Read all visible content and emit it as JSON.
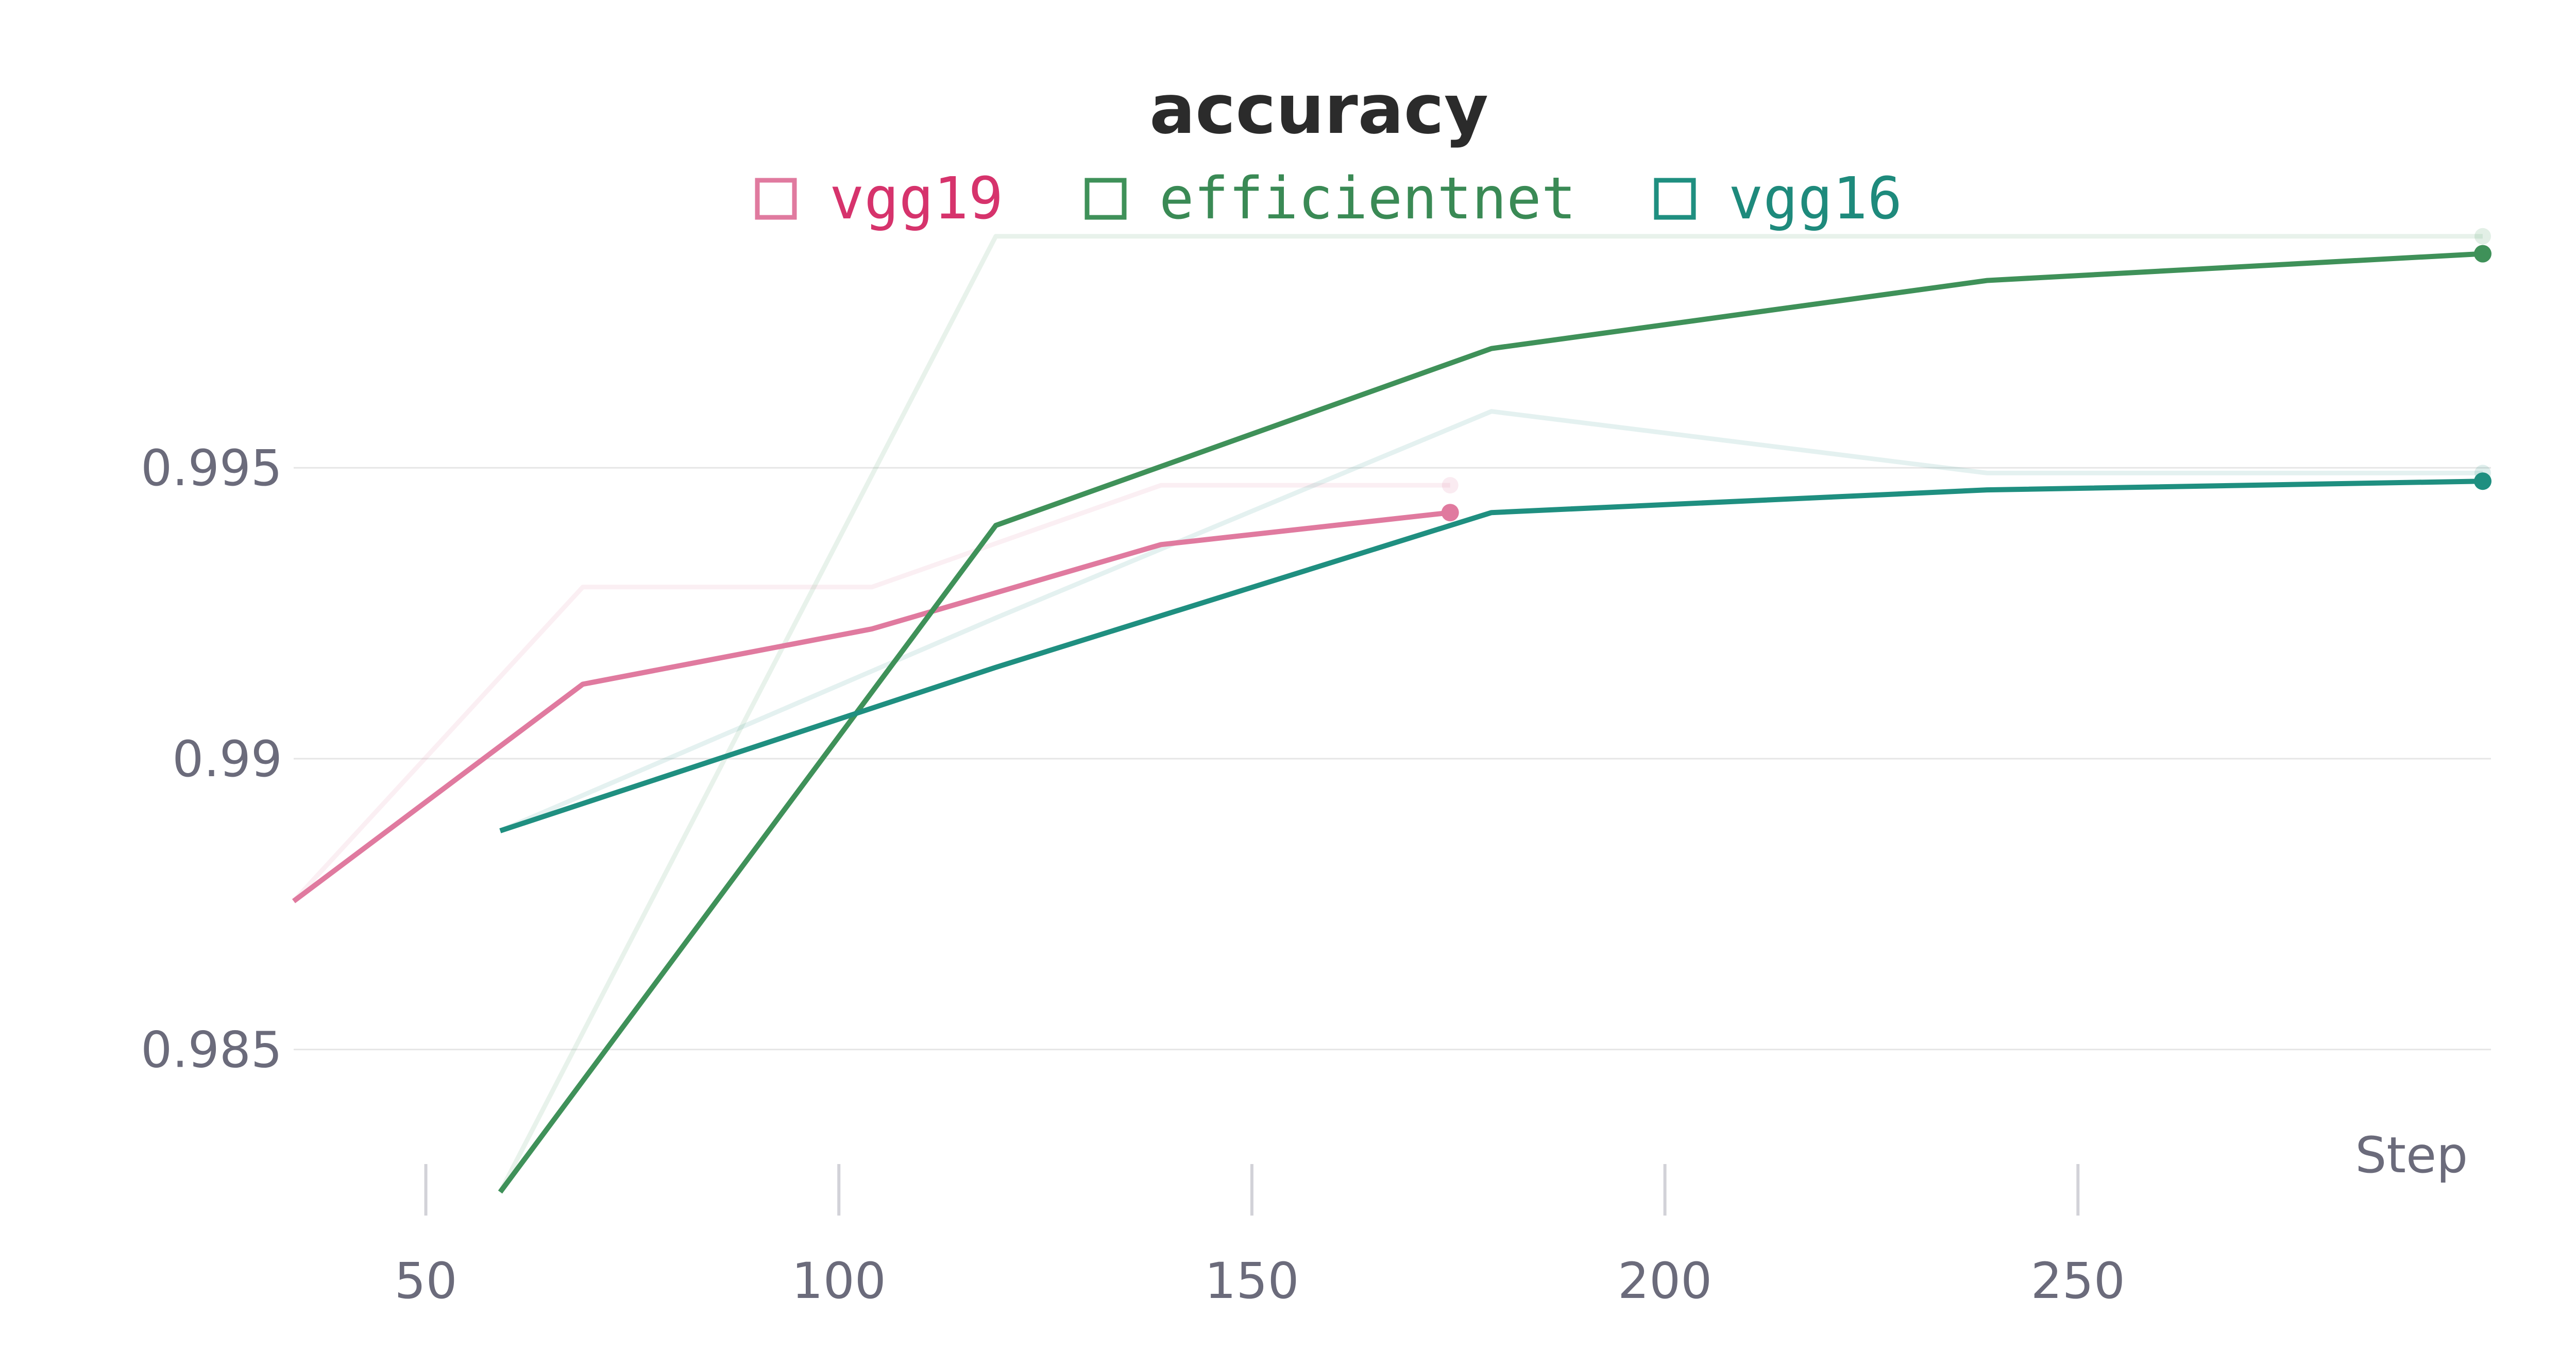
{
  "chart_data": {
    "type": "line",
    "title": "accuracy",
    "xlabel": "Step",
    "ylabel": "",
    "xlim": [
      34,
      300
    ],
    "ylim": [
      0.9825,
      0.9995
    ],
    "x_ticks": [
      50,
      100,
      150,
      200,
      250
    ],
    "x_tick_labels": [
      "50",
      "100",
      "150",
      "200",
      "250"
    ],
    "y_ticks": [
      0.985,
      0.99,
      0.995
    ],
    "y_tick_labels": [
      "0.985",
      "0.99",
      "0.995"
    ],
    "grid": "horizontal",
    "legend": "top-center",
    "series": [
      {
        "name": "vgg19",
        "color": "#e07a9f",
        "legend_text_color": "#d6336c",
        "x": [
          34,
          69,
          104,
          139,
          174
        ],
        "smoothed": [
          0.98755,
          0.99128,
          0.99223,
          0.99368,
          0.99423
        ],
        "raw": [
          0.98755,
          0.99295,
          0.99295,
          0.9947,
          0.9947
        ]
      },
      {
        "name": "efficientnet",
        "color": "#3f9159",
        "legend_text_color": "#3a8a55",
        "x": [
          59,
          119,
          179,
          239,
          299
        ],
        "smoothed": [
          0.98255,
          0.99401,
          0.99705,
          0.99822,
          0.99868
        ],
        "raw": [
          0.98255,
          0.99898,
          0.99898,
          0.99898,
          0.99898
        ]
      },
      {
        "name": "vgg16",
        "color": "#1f8f80",
        "legend_text_color": "#1e8a7c",
        "x": [
          59,
          119,
          179,
          239,
          299
        ],
        "smoothed": [
          0.98876,
          0.99157,
          0.99423,
          0.99462,
          0.99477
        ],
        "raw": [
          0.98876,
          0.99242,
          0.99597,
          0.99491,
          0.99491
        ]
      }
    ]
  }
}
